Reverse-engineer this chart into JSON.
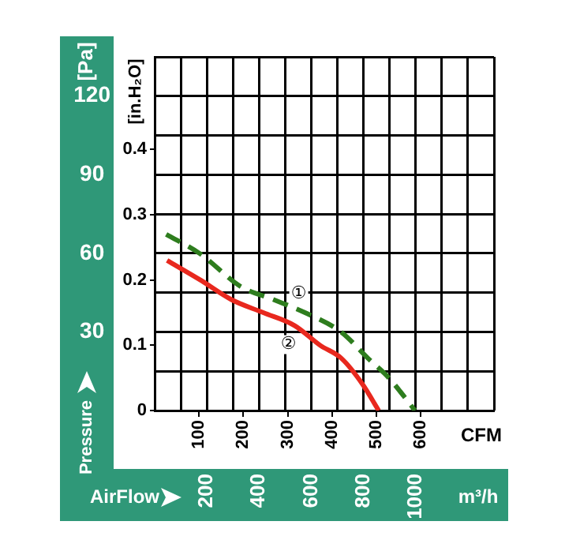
{
  "chart_data": {
    "type": "line",
    "xlabel": "CFM",
    "x2label": "m³/h",
    "ylabel": "[in.H₂O]",
    "y2label": "[Pa]",
    "xlim": [
      0,
      765
    ],
    "xticks": [
      100,
      200,
      300,
      400,
      500,
      600
    ],
    "x2lim": [
      0,
      1300
    ],
    "x2ticks": [
      {
        "value": 0,
        "label": null
      },
      {
        "value": 100,
        "label": null
      },
      200,
      {
        "value": 300,
        "label": null
      },
      400,
      {
        "value": 500,
        "label": null
      },
      600,
      {
        "value": 700,
        "label": null
      },
      800,
      {
        "value": 900,
        "label": null
      },
      1000,
      {
        "value": 1100,
        "label": null
      },
      {
        "value": 1200,
        "label": null
      },
      {
        "value": 1300,
        "label": null
      }
    ],
    "ylim": [
      0,
      0.542
    ],
    "yticks": [
      0,
      0.1,
      0.2,
      0.3,
      0.4
    ],
    "y2lim": [
      0,
      135
    ],
    "y2ticks": [
      {
        "value": 0,
        "label": null
      },
      {
        "value": 15,
        "label": null
      },
      30,
      {
        "value": 45,
        "label": null
      },
      60,
      {
        "value": 75,
        "label": null
      },
      90,
      {
        "value": 105,
        "label": null
      },
      120,
      {
        "value": 135,
        "label": null
      }
    ],
    "grid": true,
    "marker": "none",
    "series": [
      {
        "name": "①",
        "color": "#2e7d1e",
        "line_style": "dashed",
        "x": [
          26,
          103,
          194,
          268,
          339,
          421,
          481,
          528,
          587
        ],
        "values": [
          0.27,
          0.24,
          0.19,
          0.17,
          0.15,
          0.12,
          0.08,
          0.05,
          0
        ]
      },
      {
        "name": "②",
        "color": "#e8281e",
        "line_style": "solid",
        "x": [
          28,
          103,
          173,
          245,
          316,
          373,
          421,
          469,
          505
        ],
        "values": [
          0.23,
          0.2,
          0.17,
          0.15,
          0.13,
          0.1,
          0.08,
          0.04,
          0
        ]
      }
    ],
    "annotations": [
      "Pressure",
      "AirFlow"
    ]
  }
}
